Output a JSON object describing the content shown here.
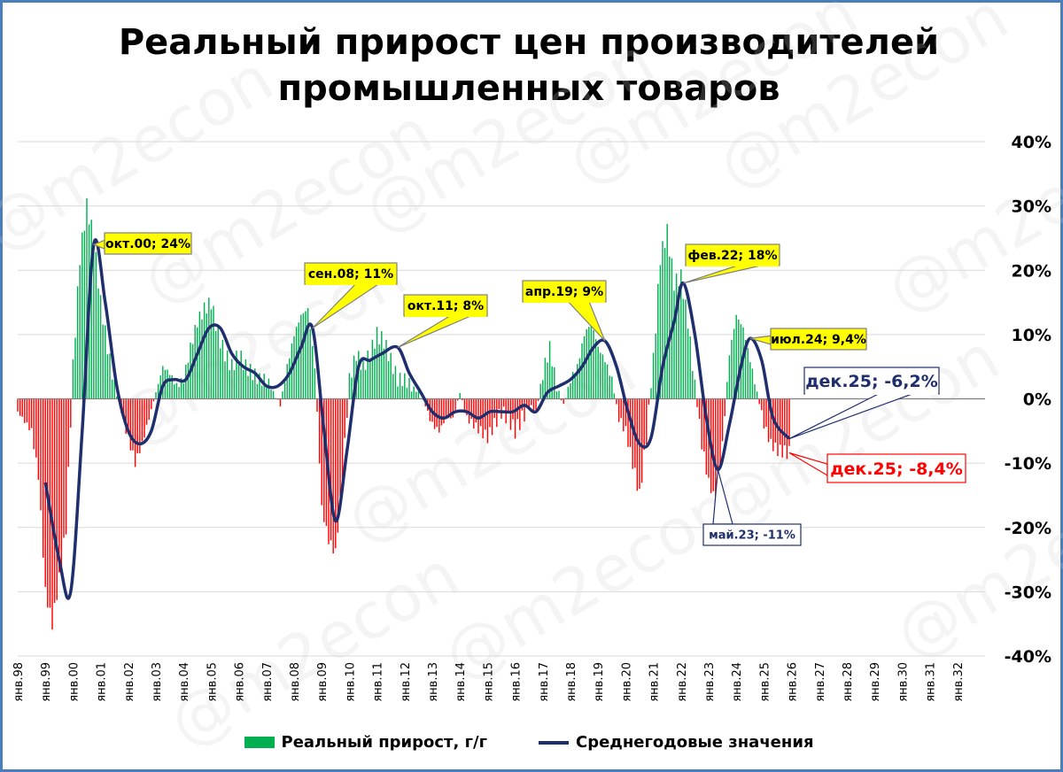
{
  "chart_data": {
    "type": "bar+line",
    "title": [
      "Реальный прирост цен производителей",
      "промышленных товаров"
    ],
    "watermark": "@m2econ",
    "y_axis": {
      "ylim": [
        -40,
        40
      ],
      "ticks": [
        "40%",
        "30%",
        "20%",
        "10%",
        "0%",
        "-10%",
        "-20%",
        "-30%",
        "-40%"
      ],
      "position": "right",
      "grid": true
    },
    "x_axis": {
      "ticks": [
        "янв.98",
        "янв.99",
        "янв.00",
        "янв.01",
        "янв.02",
        "янв.03",
        "янв.04",
        "янв.05",
        "янв.06",
        "янв.07",
        "янв.08",
        "янв.09",
        "янв.10",
        "янв.11",
        "янв.12",
        "янв.13",
        "янв.14",
        "янв.15",
        "янв.16",
        "янв.17",
        "янв.18",
        "янв.19",
        "янв.20",
        "янв.21",
        "янв.22",
        "янв.23",
        "янв.24",
        "янв.25",
        "янв.26",
        "янв.27",
        "янв.28",
        "янв.29",
        "янв.30",
        "янв.31",
        "янв.32"
      ],
      "range": [
        "янв.98",
        "янв.33"
      ]
    },
    "series": [
      {
        "name": "Реальный прирост, г/г",
        "type": "bar",
        "color_positive": "#00b050",
        "color_negative": "#ff0000",
        "points": [
          [
            "1998-01",
            -2
          ],
          [
            "1998-07",
            -5
          ],
          [
            "1998-10",
            -12
          ],
          [
            "1999-01",
            -30
          ],
          [
            "1999-04",
            -35
          ],
          [
            "1999-07",
            -28
          ],
          [
            "1999-10",
            -20
          ],
          [
            "2000-01",
            5
          ],
          [
            "2000-04",
            22
          ],
          [
            "2000-07",
            30
          ],
          [
            "2000-10",
            25
          ],
          [
            "2001-01",
            15
          ],
          [
            "2001-04",
            8
          ],
          [
            "2001-07",
            2
          ],
          [
            "2001-10",
            -2
          ],
          [
            "2002-01",
            -6
          ],
          [
            "2002-04",
            -10
          ],
          [
            "2002-07",
            -7
          ],
          [
            "2002-10",
            -3
          ],
          [
            "2003-01",
            1
          ],
          [
            "2003-04",
            5
          ],
          [
            "2003-07",
            4
          ],
          [
            "2003-10",
            2
          ],
          [
            "2004-01",
            3
          ],
          [
            "2004-04",
            8
          ],
          [
            "2004-07",
            12
          ],
          [
            "2004-10",
            14
          ],
          [
            "2005-01",
            15
          ],
          [
            "2005-04",
            10
          ],
          [
            "2005-07",
            7
          ],
          [
            "2005-10",
            5
          ],
          [
            "2006-01",
            7
          ],
          [
            "2006-04",
            5
          ],
          [
            "2006-07",
            4
          ],
          [
            "2006-10",
            3
          ],
          [
            "2007-01",
            3
          ],
          [
            "2007-04",
            1
          ],
          [
            "2007-07",
            -1
          ],
          [
            "2007-10",
            5
          ],
          [
            "2008-01",
            10
          ],
          [
            "2008-04",
            13
          ],
          [
            "2008-07",
            14
          ],
          [
            "2008-10",
            5
          ],
          [
            "2009-01",
            -17
          ],
          [
            "2009-04",
            -22
          ],
          [
            "2009-07",
            -24
          ],
          [
            "2009-10",
            -12
          ],
          [
            "2010-01",
            3
          ],
          [
            "2010-04",
            7
          ],
          [
            "2010-07",
            5
          ],
          [
            "2010-10",
            7
          ],
          [
            "2011-01",
            10
          ],
          [
            "2011-04",
            9
          ],
          [
            "2011-07",
            6
          ],
          [
            "2011-10",
            3
          ],
          [
            "2012-01",
            3
          ],
          [
            "2012-04",
            2
          ],
          [
            "2012-07",
            1
          ],
          [
            "2012-10",
            -1
          ],
          [
            "2013-01",
            -4
          ],
          [
            "2013-04",
            -5
          ],
          [
            "2013-07",
            -3
          ],
          [
            "2013-10",
            -3
          ],
          [
            "2014-01",
            1
          ],
          [
            "2014-04",
            -3
          ],
          [
            "2014-07",
            -4
          ],
          [
            "2014-10",
            -5
          ],
          [
            "2015-01",
            -6
          ],
          [
            "2015-04",
            -4
          ],
          [
            "2015-07",
            -2
          ],
          [
            "2015-10",
            -3
          ],
          [
            "2016-01",
            -5
          ],
          [
            "2016-04",
            -3
          ],
          [
            "2016-07",
            -1
          ],
          [
            "2016-10",
            -2
          ],
          [
            "2017-01",
            4
          ],
          [
            "2017-04",
            8
          ],
          [
            "2017-07",
            2
          ],
          [
            "2017-10",
            -1
          ],
          [
            "2018-01",
            3
          ],
          [
            "2018-04",
            5
          ],
          [
            "2018-07",
            10
          ],
          [
            "2018-10",
            12
          ],
          [
            "2019-01",
            8
          ],
          [
            "2019-04",
            6
          ],
          [
            "2019-07",
            3
          ],
          [
            "2019-10",
            -3
          ],
          [
            "2020-01",
            -5
          ],
          [
            "2020-04",
            -10
          ],
          [
            "2020-07",
            -15
          ],
          [
            "2020-10",
            -6
          ],
          [
            "2021-01",
            6
          ],
          [
            "2021-04",
            22
          ],
          [
            "2021-07",
            26
          ],
          [
            "2021-10",
            18
          ],
          [
            "2022-01",
            19
          ],
          [
            "2022-04",
            12
          ],
          [
            "2022-07",
            2
          ],
          [
            "2022-10",
            -7
          ],
          [
            "2023-01",
            -13
          ],
          [
            "2023-04",
            -16
          ],
          [
            "2023-07",
            -7
          ],
          [
            "2023-10",
            7
          ],
          [
            "2024-01",
            13
          ],
          [
            "2024-04",
            11
          ],
          [
            "2024-07",
            6
          ],
          [
            "2024-10",
            1
          ],
          [
            "2025-01",
            -4
          ],
          [
            "2025-04",
            -7
          ],
          [
            "2025-07",
            -8
          ],
          [
            "2025-12",
            -8.4
          ]
        ]
      },
      {
        "name": "Среднегодовые значения",
        "type": "line",
        "color": "#1f2f6e",
        "points": [
          [
            "1999-01",
            -13
          ],
          [
            "1999-07",
            -25
          ],
          [
            "1999-12",
            -30
          ],
          [
            "2000-05",
            -5
          ],
          [
            "2000-10",
            24
          ],
          [
            "2001-03",
            15
          ],
          [
            "2001-08",
            2
          ],
          [
            "2002-01",
            -5
          ],
          [
            "2002-06",
            -7
          ],
          [
            "2002-11",
            -5
          ],
          [
            "2003-04",
            2
          ],
          [
            "2003-09",
            3
          ],
          [
            "2004-02",
            3
          ],
          [
            "2004-07",
            7
          ],
          [
            "2004-12",
            11
          ],
          [
            "2005-05",
            11
          ],
          [
            "2005-10",
            7
          ],
          [
            "2006-03",
            5
          ],
          [
            "2006-08",
            4
          ],
          [
            "2007-01",
            2
          ],
          [
            "2007-06",
            2
          ],
          [
            "2007-11",
            4
          ],
          [
            "2008-04",
            8
          ],
          [
            "2008-09",
            11
          ],
          [
            "2009-02",
            -5
          ],
          [
            "2009-07",
            -19
          ],
          [
            "2009-12",
            -8
          ],
          [
            "2010-05",
            5
          ],
          [
            "2010-10",
            6
          ],
          [
            "2011-03",
            7
          ],
          [
            "2011-10",
            8
          ],
          [
            "2012-03",
            4
          ],
          [
            "2012-08",
            1
          ],
          [
            "2013-01",
            -2
          ],
          [
            "2013-06",
            -3
          ],
          [
            "2013-11",
            -2
          ],
          [
            "2014-04",
            -2
          ],
          [
            "2014-09",
            -3
          ],
          [
            "2015-02",
            -2
          ],
          [
            "2015-07",
            -2
          ],
          [
            "2015-12",
            -2
          ],
          [
            "2016-05",
            -1
          ],
          [
            "2016-10",
            -2
          ],
          [
            "2017-03",
            1
          ],
          [
            "2017-08",
            2
          ],
          [
            "2018-01",
            3
          ],
          [
            "2018-06",
            5
          ],
          [
            "2018-11",
            8
          ],
          [
            "2019-04",
            9
          ],
          [
            "2019-09",
            5
          ],
          [
            "2020-02",
            -2
          ],
          [
            "2020-07",
            -7
          ],
          [
            "2020-12",
            -6
          ],
          [
            "2021-05",
            5
          ],
          [
            "2021-10",
            12
          ],
          [
            "2022-02",
            18
          ],
          [
            "2022-07",
            10
          ],
          [
            "2022-12",
            -3
          ],
          [
            "2023-05",
            -11
          ],
          [
            "2023-10",
            -4
          ],
          [
            "2024-03",
            5
          ],
          [
            "2024-07",
            9.4
          ],
          [
            "2024-12",
            6
          ],
          [
            "2025-05",
            -3
          ],
          [
            "2025-12",
            -6.2
          ]
        ]
      }
    ],
    "annotations": [
      {
        "label": "окт.00; 24%",
        "x": "2000-10",
        "y": 24,
        "style": "yellow-callout"
      },
      {
        "label": "сен.08; 11%",
        "x": "2008-09",
        "y": 11,
        "style": "yellow-callout"
      },
      {
        "label": "окт.11; 8%",
        "x": "2011-10",
        "y": 8,
        "style": "yellow-callout"
      },
      {
        "label": "апр.19; 9%",
        "x": "2019-04",
        "y": 9,
        "style": "yellow-callout"
      },
      {
        "label": "фев.22; 18%",
        "x": "2022-02",
        "y": 18,
        "style": "yellow-callout"
      },
      {
        "label": "июл.24; 9,4%",
        "x": "2024-07",
        "y": 9.4,
        "style": "yellow-callout"
      },
      {
        "label": "май.23; -11%",
        "x": "2023-05",
        "y": -11,
        "style": "navy-callout-small"
      },
      {
        "label": "дек.25; -6,2%",
        "x": "2025-12",
        "y": -6.2,
        "style": "navy-callout-large"
      },
      {
        "label": "дек.25; -8,4%",
        "x": "2025-12",
        "y": -8.4,
        "style": "red-callout-large"
      }
    ],
    "legend": {
      "position": "bottom-center",
      "entries": [
        "Реальный прирост, г/г",
        "Среднегодовые значения"
      ]
    }
  }
}
